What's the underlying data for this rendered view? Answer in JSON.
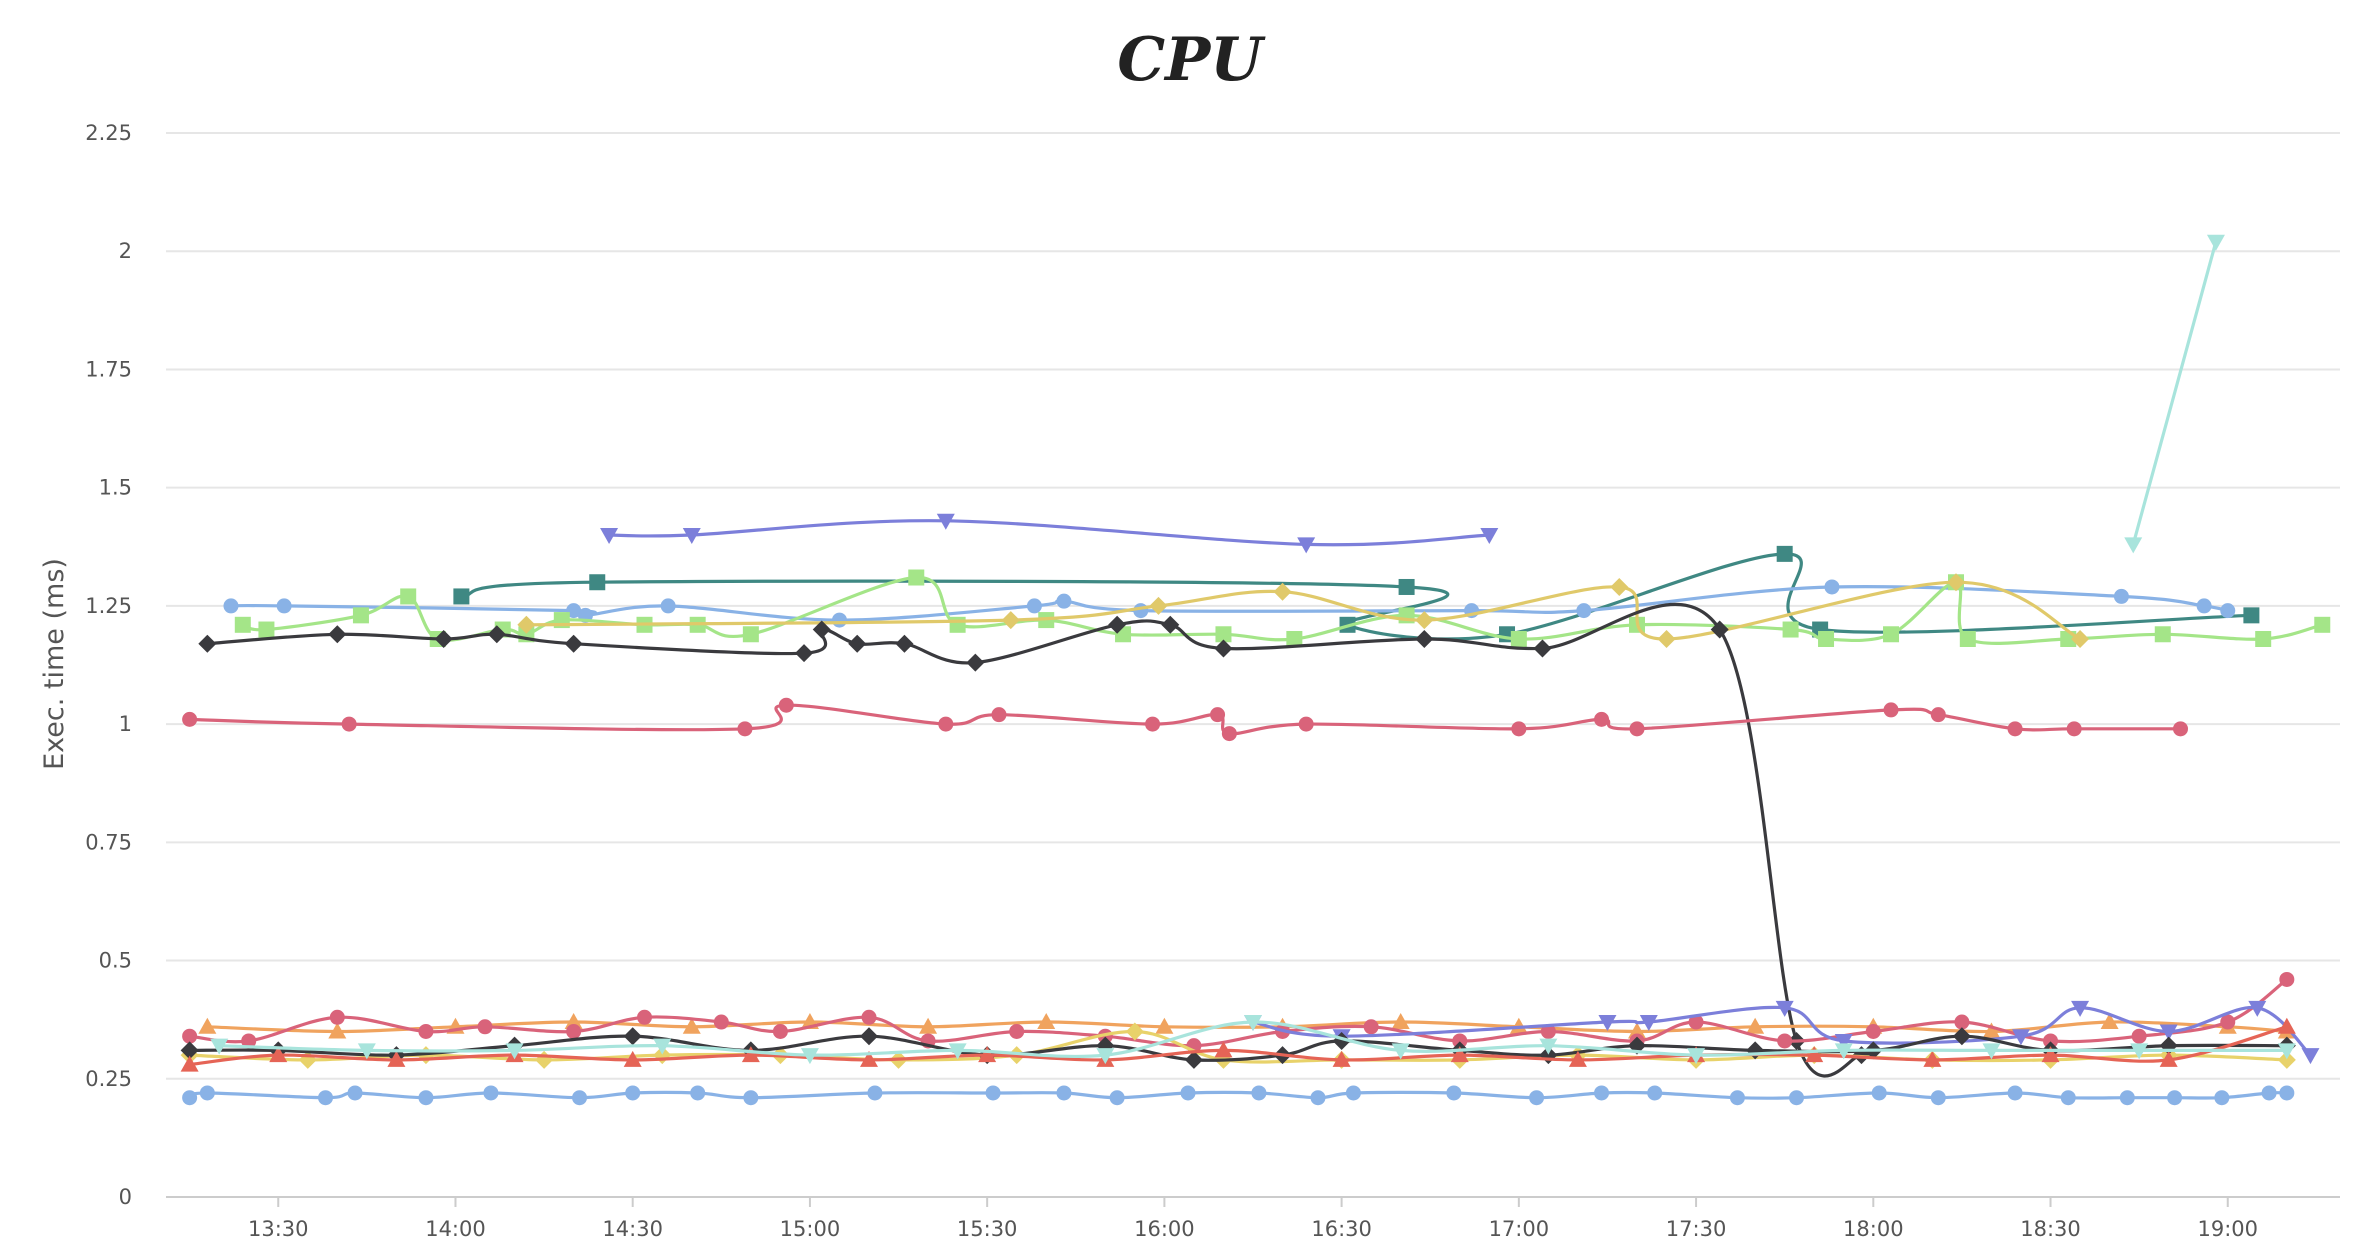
{
  "chart_data": {
    "type": "line",
    "title": "CPU",
    "xlabel": "",
    "ylabel": "Exec. time (ms)",
    "xlim": [
      "13:11",
      "19:19"
    ],
    "ylim": [
      0,
      2.25
    ],
    "y_ticks": [
      0,
      0.25,
      0.5,
      0.75,
      1,
      1.25,
      1.5,
      1.75,
      2,
      2.25
    ],
    "y_tick_labels": [
      "0",
      "0.25",
      "0.5",
      "0.75",
      "1",
      "1.25",
      "1.5",
      "1.75",
      "2",
      "2.25"
    ],
    "x_ticks": [
      "13:30",
      "14:00",
      "14:30",
      "15:00",
      "15:30",
      "16:00",
      "16:30",
      "17:00",
      "17:30",
      "18:00",
      "18:30",
      "19:00"
    ],
    "grid": true,
    "legend": "none",
    "series": [
      {
        "color": "#7c7fda",
        "marker": "triangle-down",
        "points": [
          [
            "14:26",
            1.4
          ],
          [
            "14:40",
            1.4
          ],
          [
            "15:23",
            1.43
          ],
          [
            "16:24",
            1.38
          ],
          [
            "16:55",
            1.4
          ]
        ]
      },
      {
        "color": "#3f8883",
        "marker": "square",
        "points": [
          [
            "14:01",
            1.27
          ],
          [
            "14:24",
            1.3
          ],
          [
            "16:41",
            1.29
          ],
          [
            "16:31",
            1.21
          ],
          [
            "16:58",
            1.19
          ],
          [
            "17:45",
            1.36
          ],
          [
            "17:51",
            1.2
          ],
          [
            "19:04",
            1.23
          ]
        ]
      },
      {
        "color": "#89b2e6",
        "marker": "circle",
        "points": [
          [
            "13:22",
            1.25
          ],
          [
            "13:31",
            1.25
          ],
          [
            "14:20",
            1.24
          ],
          [
            "14:22",
            1.23
          ],
          [
            "14:36",
            1.25
          ],
          [
            "15:05",
            1.22
          ],
          [
            "15:38",
            1.25
          ],
          [
            "15:43",
            1.26
          ],
          [
            "15:56",
            1.24
          ],
          [
            "16:52",
            1.24
          ],
          [
            "17:11",
            1.24
          ],
          [
            "17:53",
            1.29
          ],
          [
            "18:42",
            1.27
          ],
          [
            "18:56",
            1.25
          ],
          [
            "19:00",
            1.24
          ]
        ]
      },
      {
        "color": "#a4e588",
        "marker": "square",
        "points": [
          [
            "13:24",
            1.21
          ],
          [
            "13:28",
            1.2
          ],
          [
            "13:44",
            1.23
          ],
          [
            "13:52",
            1.27
          ],
          [
            "13:57",
            1.18
          ],
          [
            "14:08",
            1.2
          ],
          [
            "14:12",
            1.19
          ],
          [
            "14:18",
            1.22
          ],
          [
            "14:32",
            1.21
          ],
          [
            "14:41",
            1.21
          ],
          [
            "14:50",
            1.19
          ],
          [
            "15:18",
            1.31
          ],
          [
            "15:25",
            1.21
          ],
          [
            "15:40",
            1.22
          ],
          [
            "15:53",
            1.19
          ],
          [
            "16:10",
            1.19
          ],
          [
            "16:22",
            1.18
          ],
          [
            "16:41",
            1.23
          ],
          [
            "17:00",
            1.18
          ],
          [
            "17:20",
            1.21
          ],
          [
            "17:46",
            1.2
          ],
          [
            "17:52",
            1.18
          ],
          [
            "18:03",
            1.19
          ],
          [
            "18:14",
            1.3
          ],
          [
            "18:16",
            1.18
          ],
          [
            "18:33",
            1.18
          ],
          [
            "18:49",
            1.19
          ],
          [
            "19:06",
            1.18
          ],
          [
            "19:16",
            1.21
          ]
        ]
      },
      {
        "color": "#e0c96a",
        "marker": "diamond",
        "points": [
          [
            "14:12",
            1.21
          ],
          [
            "15:34",
            1.22
          ],
          [
            "15:59",
            1.25
          ],
          [
            "16:20",
            1.28
          ],
          [
            "16:44",
            1.22
          ],
          [
            "17:17",
            1.29
          ],
          [
            "17:25",
            1.18
          ],
          [
            "18:14",
            1.3
          ],
          [
            "18:35",
            1.18
          ]
        ]
      },
      {
        "color": "#3a3a3e",
        "marker": "diamond",
        "points": [
          [
            "13:18",
            1.17
          ],
          [
            "13:40",
            1.19
          ],
          [
            "13:58",
            1.18
          ],
          [
            "14:07",
            1.19
          ],
          [
            "14:20",
            1.17
          ],
          [
            "14:59",
            1.15
          ],
          [
            "15:02",
            1.2
          ],
          [
            "15:08",
            1.17
          ],
          [
            "15:16",
            1.17
          ],
          [
            "15:28",
            1.13
          ],
          [
            "15:52",
            1.21
          ],
          [
            "16:01",
            1.21
          ],
          [
            "16:10",
            1.16
          ],
          [
            "16:44",
            1.18
          ],
          [
            "17:04",
            1.16
          ],
          [
            "17:34",
            1.2
          ],
          [
            "17:47",
            0.33
          ],
          [
            "17:58",
            0.3
          ]
        ]
      },
      {
        "color": "#d9637a",
        "marker": "circle",
        "points": [
          [
            "13:15",
            1.01
          ],
          [
            "13:42",
            1.0
          ],
          [
            "14:49",
            0.99
          ],
          [
            "14:56",
            1.04
          ],
          [
            "15:23",
            1.0
          ],
          [
            "15:32",
            1.02
          ],
          [
            "15:58",
            1.0
          ],
          [
            "16:09",
            1.02
          ],
          [
            "16:11",
            0.98
          ],
          [
            "16:24",
            1.0
          ],
          [
            "17:00",
            0.99
          ],
          [
            "17:14",
            1.01
          ],
          [
            "17:20",
            0.99
          ],
          [
            "18:03",
            1.03
          ],
          [
            "18:11",
            1.02
          ],
          [
            "18:24",
            0.99
          ],
          [
            "18:34",
            0.99
          ],
          [
            "18:52",
            0.99
          ]
        ]
      },
      {
        "color": "#a8e4dc",
        "marker": "triangle-down",
        "points": [
          [
            "18:44",
            1.38
          ],
          [
            "18:58",
            2.02
          ]
        ]
      },
      {
        "color": "#89b2e6",
        "marker": "circle",
        "points": [
          [
            "13:15",
            0.21
          ],
          [
            "13:18",
            0.22
          ],
          [
            "13:38",
            0.21
          ],
          [
            "13:43",
            0.22
          ],
          [
            "13:55",
            0.21
          ],
          [
            "14:06",
            0.22
          ],
          [
            "14:21",
            0.21
          ],
          [
            "14:30",
            0.22
          ],
          [
            "14:41",
            0.22
          ],
          [
            "14:50",
            0.21
          ],
          [
            "15:11",
            0.22
          ],
          [
            "15:31",
            0.22
          ],
          [
            "15:43",
            0.22
          ],
          [
            "15:52",
            0.21
          ],
          [
            "16:04",
            0.22
          ],
          [
            "16:16",
            0.22
          ],
          [
            "16:26",
            0.21
          ],
          [
            "16:32",
            0.22
          ],
          [
            "16:49",
            0.22
          ],
          [
            "17:03",
            0.21
          ],
          [
            "17:14",
            0.22
          ],
          [
            "17:23",
            0.22
          ],
          [
            "17:37",
            0.21
          ],
          [
            "17:47",
            0.21
          ],
          [
            "18:01",
            0.22
          ],
          [
            "18:11",
            0.21
          ],
          [
            "18:24",
            0.22
          ],
          [
            "18:33",
            0.21
          ],
          [
            "18:43",
            0.21
          ],
          [
            "18:51",
            0.21
          ],
          [
            "18:59",
            0.21
          ],
          [
            "19:07",
            0.22
          ],
          [
            "19:10",
            0.22
          ]
        ]
      },
      {
        "color": "#f0a35e",
        "marker": "triangle",
        "points": [
          [
            "13:18",
            0.36
          ],
          [
            "13:40",
            0.35
          ],
          [
            "14:00",
            0.36
          ],
          [
            "14:20",
            0.37
          ],
          [
            "14:40",
            0.36
          ],
          [
            "15:00",
            0.37
          ],
          [
            "15:20",
            0.36
          ],
          [
            "15:40",
            0.37
          ],
          [
            "16:00",
            0.36
          ],
          [
            "16:20",
            0.36
          ],
          [
            "16:40",
            0.37
          ],
          [
            "17:00",
            0.36
          ],
          [
            "17:20",
            0.35
          ],
          [
            "17:40",
            0.36
          ],
          [
            "18:00",
            0.36
          ],
          [
            "18:20",
            0.35
          ],
          [
            "18:40",
            0.37
          ],
          [
            "19:00",
            0.36
          ],
          [
            "19:10",
            0.35
          ]
        ]
      },
      {
        "color": "#d9637a",
        "marker": "circle",
        "points": [
          [
            "13:15",
            0.34
          ],
          [
            "13:25",
            0.33
          ],
          [
            "13:40",
            0.38
          ],
          [
            "13:55",
            0.35
          ],
          [
            "14:05",
            0.36
          ],
          [
            "14:20",
            0.35
          ],
          [
            "14:32",
            0.38
          ],
          [
            "14:45",
            0.37
          ],
          [
            "14:55",
            0.35
          ],
          [
            "15:10",
            0.38
          ],
          [
            "15:20",
            0.33
          ],
          [
            "15:35",
            0.35
          ],
          [
            "15:50",
            0.34
          ],
          [
            "16:05",
            0.32
          ],
          [
            "16:20",
            0.35
          ],
          [
            "16:35",
            0.36
          ],
          [
            "16:50",
            0.33
          ],
          [
            "17:05",
            0.35
          ],
          [
            "17:20",
            0.33
          ],
          [
            "17:30",
            0.37
          ],
          [
            "17:45",
            0.33
          ],
          [
            "18:00",
            0.35
          ],
          [
            "18:15",
            0.37
          ],
          [
            "18:30",
            0.33
          ],
          [
            "18:45",
            0.34
          ],
          [
            "19:00",
            0.37
          ],
          [
            "19:10",
            0.46
          ]
        ]
      },
      {
        "color": "#7c7fda",
        "marker": "triangle-down",
        "points": [
          [
            "16:15",
            0.37
          ],
          [
            "16:30",
            0.34
          ],
          [
            "17:15",
            0.37
          ],
          [
            "17:22",
            0.37
          ],
          [
            "17:45",
            0.4
          ],
          [
            "17:55",
            0.33
          ],
          [
            "18:25",
            0.34
          ],
          [
            "18:35",
            0.4
          ],
          [
            "18:50",
            0.35
          ],
          [
            "19:05",
            0.4
          ],
          [
            "19:14",
            0.3
          ]
        ]
      },
      {
        "color": "#e8d26a",
        "marker": "diamond",
        "points": [
          [
            "13:15",
            0.3
          ],
          [
            "13:35",
            0.29
          ],
          [
            "13:55",
            0.3
          ],
          [
            "14:15",
            0.29
          ],
          [
            "14:35",
            0.3
          ],
          [
            "14:55",
            0.3
          ],
          [
            "15:15",
            0.29
          ],
          [
            "15:35",
            0.3
          ],
          [
            "15:55",
            0.35
          ],
          [
            "16:10",
            0.29
          ],
          [
            "16:30",
            0.29
          ],
          [
            "16:50",
            0.29
          ],
          [
            "17:10",
            0.3
          ],
          [
            "17:30",
            0.29
          ],
          [
            "17:50",
            0.3
          ],
          [
            "18:10",
            0.29
          ],
          [
            "18:30",
            0.29
          ],
          [
            "18:50",
            0.3
          ],
          [
            "19:10",
            0.29
          ]
        ]
      },
      {
        "color": "#3a3a3e",
        "marker": "diamond",
        "points": [
          [
            "13:15",
            0.31
          ],
          [
            "13:30",
            0.31
          ],
          [
            "13:50",
            0.3
          ],
          [
            "14:10",
            0.32
          ],
          [
            "14:30",
            0.34
          ],
          [
            "14:50",
            0.31
          ],
          [
            "15:10",
            0.34
          ],
          [
            "15:30",
            0.3
          ],
          [
            "15:50",
            0.32
          ],
          [
            "16:05",
            0.29
          ],
          [
            "16:20",
            0.3
          ],
          [
            "16:30",
            0.33
          ],
          [
            "16:50",
            0.31
          ],
          [
            "17:05",
            0.3
          ],
          [
            "17:20",
            0.32
          ],
          [
            "17:40",
            0.31
          ],
          [
            "18:00",
            0.31
          ],
          [
            "18:15",
            0.34
          ],
          [
            "18:30",
            0.31
          ],
          [
            "18:50",
            0.32
          ],
          [
            "19:10",
            0.32
          ]
        ]
      },
      {
        "color": "#e56456",
        "marker": "triangle",
        "points": [
          [
            "13:15",
            0.28
          ],
          [
            "13:30",
            0.3
          ],
          [
            "13:50",
            0.29
          ],
          [
            "14:10",
            0.3
          ],
          [
            "14:30",
            0.29
          ],
          [
            "14:50",
            0.3
          ],
          [
            "15:10",
            0.29
          ],
          [
            "15:30",
            0.3
          ],
          [
            "15:50",
            0.29
          ],
          [
            "16:10",
            0.31
          ],
          [
            "16:30",
            0.29
          ],
          [
            "16:50",
            0.3
          ],
          [
            "17:10",
            0.29
          ],
          [
            "17:30",
            0.3
          ],
          [
            "17:50",
            0.3
          ],
          [
            "18:10",
            0.29
          ],
          [
            "18:30",
            0.3
          ],
          [
            "18:50",
            0.29
          ],
          [
            "19:10",
            0.36
          ]
        ]
      },
      {
        "color": "#a8e4dc",
        "marker": "triangle-down",
        "points": [
          [
            "13:20",
            0.32
          ],
          [
            "13:45",
            0.31
          ],
          [
            "14:10",
            0.31
          ],
          [
            "14:35",
            0.32
          ],
          [
            "15:00",
            0.3
          ],
          [
            "15:25",
            0.31
          ],
          [
            "15:50",
            0.3
          ],
          [
            "16:15",
            0.37
          ],
          [
            "16:40",
            0.31
          ],
          [
            "17:05",
            0.32
          ],
          [
            "17:30",
            0.3
          ],
          [
            "17:55",
            0.31
          ],
          [
            "18:20",
            0.31
          ],
          [
            "18:45",
            0.31
          ],
          [
            "19:10",
            0.31
          ]
        ]
      }
    ]
  }
}
